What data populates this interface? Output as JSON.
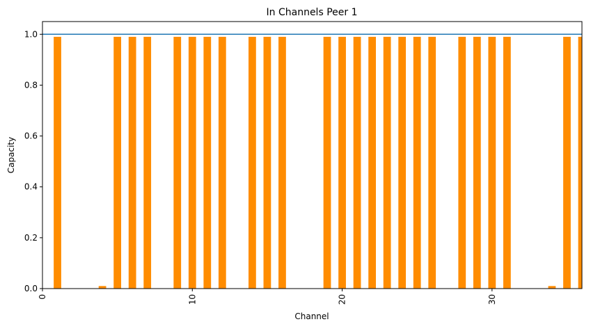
{
  "chart_data": {
    "type": "bar",
    "title": "In Channels Peer 1",
    "xlabel": "Channel",
    "ylabel": "Capacity",
    "xlim": [
      0,
      36
    ],
    "ylim": [
      0,
      1.05
    ],
    "bar_width": 0.5,
    "xticks": [
      0,
      10,
      20,
      30
    ],
    "yticks": [
      0.0,
      0.2,
      0.4,
      0.6,
      0.8,
      1.0
    ],
    "ytick_labels": [
      "0.0",
      "0.2",
      "0.4",
      "0.6",
      "0.8",
      "1.0"
    ],
    "grid": false,
    "reference_line": {
      "y": 1.0,
      "color": "#1f77b4"
    },
    "bar_color": "#ff8c00",
    "x": [
      0,
      1,
      2,
      3,
      4,
      5,
      6,
      7,
      8,
      9,
      10,
      11,
      12,
      13,
      14,
      15,
      16,
      17,
      18,
      19,
      20,
      21,
      22,
      23,
      24,
      25,
      26,
      27,
      28,
      29,
      30,
      31,
      32,
      33,
      34,
      35,
      36
    ],
    "values": [
      0,
      0.99,
      0,
      0,
      0.01,
      0.99,
      0.99,
      0.99,
      0,
      0.99,
      0.99,
      0.99,
      0.99,
      0,
      0.99,
      0.99,
      0.99,
      0,
      0,
      0.99,
      0.99,
      0.99,
      0.99,
      0.99,
      0.99,
      0.99,
      0.99,
      0,
      0.99,
      0.99,
      0.99,
      0.99,
      0,
      0,
      0.01,
      0.99,
      0.99
    ]
  }
}
